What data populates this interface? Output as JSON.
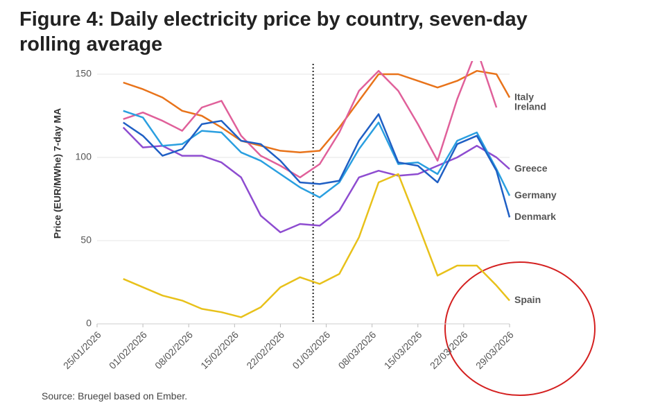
{
  "chart_data": {
    "type": "line",
    "title": "Figure 4: Daily electricity price by country, seven-day rolling average",
    "y_label": "Price (EUR/MWhe) 7-day MA",
    "source": "Source: Bruegel based on Ember.",
    "x": [
      "29/01/2026",
      "01/02/2026",
      "04/02/2026",
      "07/02/2026",
      "10/02/2026",
      "13/02/2026",
      "16/02/2026",
      "19/02/2026",
      "22/02/2026",
      "25/02/2026",
      "28/02/2026",
      "03/03/2026",
      "06/03/2026",
      "09/03/2026",
      "12/03/2026",
      "15/03/2026",
      "18/03/2026",
      "21/03/2026",
      "24/03/2026",
      "27/03/2026",
      "29/03/2026"
    ],
    "series": [
      {
        "name": "Italy",
        "color": "#e8731a",
        "values": [
          145,
          141,
          136,
          128,
          125,
          118,
          110,
          107,
          104,
          103,
          104,
          118,
          134,
          150,
          150,
          146,
          142,
          146,
          152,
          150,
          136
        ]
      },
      {
        "name": "Ireland",
        "color": "#e0609a",
        "values": [
          123,
          127,
          122,
          116,
          130,
          134,
          113,
          101,
          95,
          88,
          96,
          115,
          140,
          152,
          140,
          120,
          98,
          135,
          165,
          130,
          null
        ]
      },
      {
        "name": "Greece",
        "color": "#8e4cd0",
        "values": [
          118,
          106,
          107,
          101,
          101,
          97,
          88,
          65,
          55,
          60,
          59,
          68,
          88,
          92,
          89,
          90,
          95,
          100,
          107,
          100,
          93
        ]
      },
      {
        "name": "Germany",
        "color": "#2a9fe0",
        "values": [
          128,
          124,
          107,
          108,
          116,
          115,
          103,
          98,
          90,
          82,
          76,
          85,
          105,
          121,
          96,
          97,
          90,
          110,
          115,
          93,
          77
        ]
      },
      {
        "name": "Denmark",
        "color": "#1f5fc4",
        "values": [
          121,
          113,
          101,
          105,
          120,
          122,
          110,
          108,
          98,
          85,
          84,
          86,
          110,
          126,
          97,
          95,
          85,
          108,
          113,
          92,
          64
        ]
      },
      {
        "name": "Spain",
        "color": "#e8c11a",
        "values": [
          27,
          22,
          17,
          14,
          9,
          7,
          4,
          10,
          22,
          28,
          24,
          30,
          52,
          85,
          90,
          60,
          29,
          35,
          35,
          23,
          14
        ]
      }
    ],
    "xlim": [
      "25/01/2026",
      "29/03/2026"
    ],
    "xticks": [
      "25/01/2026",
      "01/02/2026",
      "08/02/2026",
      "15/02/2026",
      "22/02/2026",
      "01/03/2026",
      "08/03/2026",
      "15/03/2026",
      "22/03/2026",
      "29/03/2026"
    ],
    "ylim": [
      0,
      150
    ],
    "yticks": [
      0,
      50,
      100,
      150
    ],
    "grid": true,
    "vline_x": "27/02/2026"
  }
}
